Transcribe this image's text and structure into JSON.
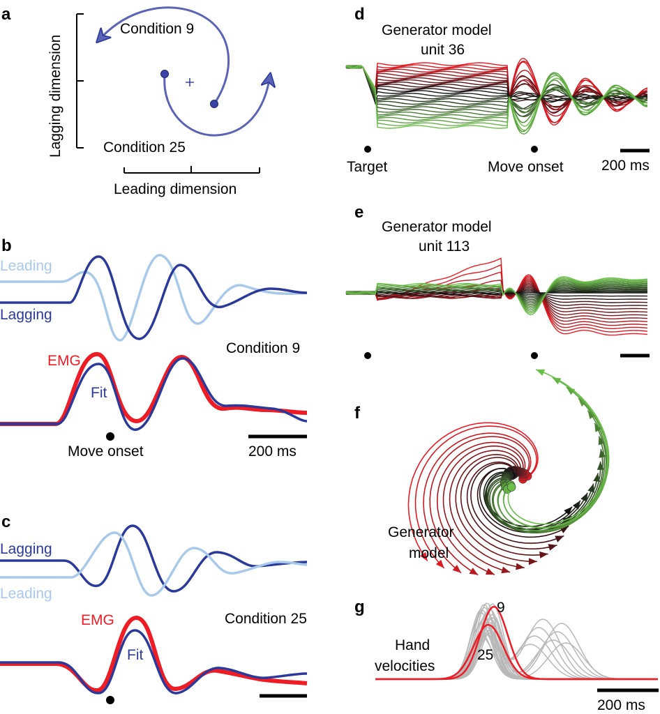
{
  "colors": {
    "dark_blue": "#2b3a9a",
    "light_blue": "#a9c9ea",
    "emg_red": "#ee1c25",
    "dark_red": "#8b1a1a",
    "green": "#2f9a44",
    "light_green": "#6cc04a",
    "black": "#111111",
    "gray": "#b8b8b8",
    "state_blue": "#5b63b8"
  },
  "panels": {
    "a": {
      "label": "a",
      "y_axis_label": "Lagging dimension",
      "x_axis_label": "Leading dimension",
      "condition_top": "Condition 9",
      "condition_bottom": "Condition 25"
    },
    "b": {
      "label": "b",
      "leading_label": "Leading",
      "lagging_label": "Lagging",
      "condition": "Condition 9",
      "emg_label": "EMG",
      "fit_label": "Fit",
      "onset_label": "Move onset",
      "scale_label": "200 ms"
    },
    "c": {
      "label": "c",
      "lagging_label": "Lagging",
      "leading_label": "Leading",
      "condition": "Condition 25",
      "emg_label": "EMG",
      "fit_label": "Fit"
    },
    "d": {
      "label": "d",
      "title_line1": "Generator model",
      "title_line2": "unit 36",
      "target_label": "Target",
      "onset_label": "Move onset",
      "scale_label": "200 ms"
    },
    "e": {
      "label": "e",
      "title_line1": "Generator model",
      "title_line2": "unit 113"
    },
    "f": {
      "label": "f",
      "title_line1": "Generator",
      "title_line2": "model"
    },
    "g": {
      "label": "g",
      "title_line1": "Hand",
      "title_line2": "velocities",
      "cond_top": "9",
      "cond_bottom": "25",
      "scale_label": "200 ms"
    }
  }
}
